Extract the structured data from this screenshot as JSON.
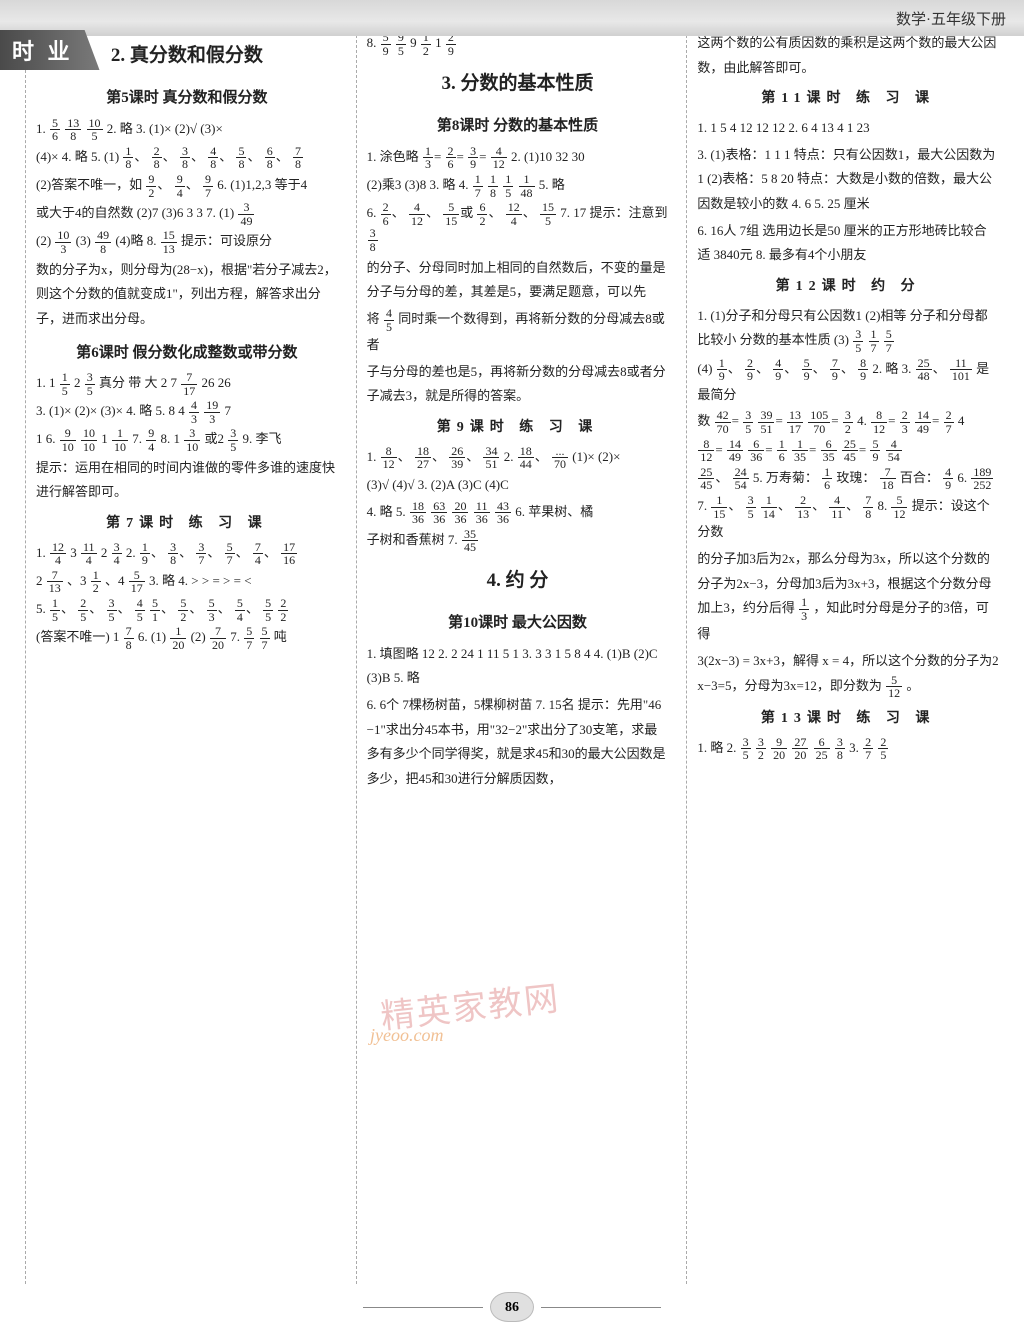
{
  "header": {
    "label": "数学·五年级下册"
  },
  "sideTab": "时    业",
  "pageNumber": "86",
  "watermark": {
    "line1": "精英家教网",
    "line2": "jyeoo.com"
  },
  "col1": {
    "s1_title": "2. 真分数和假分数",
    "s1_sub1": "第5课时  真分数和假分数",
    "s1_l1a": "1. ",
    "s1_f1n": "5",
    "s1_f1d": "6",
    "s1_l1b": "  ",
    "s1_f2n": "13",
    "s1_f2d": "8",
    "s1_l1c": "  ",
    "s1_f3n": "10",
    "s1_f3d": "5",
    "s1_l1d": "  2. 略  3. (1)×  (2)√  (3)×",
    "s1_l2a": "(4)×  4. 略  5. (1)",
    "s1_f4n": "1",
    "s1_f4d": "8",
    "s1_l2b": "、",
    "s1_f5n": "2",
    "s1_f5d": "8",
    "s1_l2c": "、",
    "s1_f6n": "3",
    "s1_f6d": "8",
    "s1_l2d": "、",
    "s1_f7n": "4",
    "s1_f7d": "8",
    "s1_l2e": "、",
    "s1_f8n": "5",
    "s1_f8d": "8",
    "s1_l2f": "、",
    "s1_f9n": "6",
    "s1_f9d": "8",
    "s1_l2g": "、",
    "s1_f10n": "7",
    "s1_f10d": "8",
    "s1_l3a": "(2)答案不唯一，如",
    "s1_f11n": "9",
    "s1_f11d": "2",
    "s1_l3b": "、",
    "s1_f12n": "9",
    "s1_f12d": "4",
    "s1_l3c": "、",
    "s1_f13n": "9",
    "s1_f13d": "7",
    "s1_l3d": "  6. (1)1,2,3  等于4",
    "s1_l4a": "或大于4的自然数  (2)7  (3)6  3  3  7. (1)",
    "s1_f14n": "3",
    "s1_f14d": "49",
    "s1_l5a": "(2)",
    "s1_f15n": "10",
    "s1_f15d": "3",
    "s1_l5b": "  (3)",
    "s1_f16n": "49",
    "s1_f16d": "8",
    "s1_l5c": "  (4)略  8. ",
    "s1_f17n": "15",
    "s1_f17d": "13",
    "s1_l5d": "  提示：可设原分",
    "s1_l6": "数的分子为x，则分母为(28−x)，根据\"若分子减去2，则这个分数的值就变成1\"，列出方程，解答求出分子，进而求出分母。",
    "s2_sub1": "第6课时  假分数化成整数或带分数",
    "s2_l1a": "1. 1",
    "s2_f1n": "1",
    "s2_f1d": "5",
    "s2_l1b": "  2",
    "s2_f2n": "3",
    "s2_f2d": "5",
    "s2_l1c": "  真分  带  大  2  7  ",
    "s2_f3n": "7",
    "s2_f3d": "17",
    "s2_l1d": "  26  26",
    "s2_l2a": "3. (1)× (2)× (3)×  4. 略  5. 8  4",
    "s2_f4n": "4",
    "s2_f4d": "3",
    "s2_l2b": "  ",
    "s2_f5n": "19",
    "s2_f5d": "3",
    "s2_l2c": "  7",
    "s2_l3a": "1  6. ",
    "s2_f6n": "9",
    "s2_f6d": "10",
    "s2_l3b": "  ",
    "s2_f7n": "10",
    "s2_f7d": "10",
    "s2_l3c": "  1",
    "s2_f8n": "1",
    "s2_f8d": "10",
    "s2_l3d": "  7. ",
    "s2_f9n": "9",
    "s2_f9d": "4",
    "s2_l3e": "  8. 1",
    "s2_f10n": "3",
    "s2_f10d": "10",
    "s2_l3f": "或2",
    "s2_f11n": "3",
    "s2_f11d": "5",
    "s2_l3g": "  9. 李飞",
    "s2_l4": "提示：运用在相同的时间内谁做的零件多谁的速度快进行解答即可。",
    "s3_sub1": "第7课时  练  习  课",
    "s3_l1a": "1. ",
    "s3_f1n": "12",
    "s3_f1d": "4",
    "s3_l1b": "  3  ",
    "s3_f2n": "11",
    "s3_f2d": "4",
    "s3_l1c": "  2",
    "s3_f3n": "3",
    "s3_f3d": "4",
    "s3_l1d": "  2. ",
    "s3_f4n": "1",
    "s3_f4d": "9",
    "s3_l1e": "、",
    "s3_f5n": "3",
    "s3_f5d": "8",
    "s3_l1f": "、",
    "s3_f6n": "3",
    "s3_f6d": "7",
    "s3_l1g": "、",
    "s3_f7n": "5",
    "s3_f7d": "7",
    "s3_l1h": "、",
    "s3_f8n": "7",
    "s3_f8d": "4",
    "s3_l1i": "、",
    "s3_f9n": "17",
    "s3_f9d": "16",
    "s3_l2a": "2",
    "s3_f10n": "7",
    "s3_f10d": "13",
    "s3_l2b": "、3",
    "s3_f11n": "1",
    "s3_f11d": "2",
    "s3_l2c": "、4",
    "s3_f12n": "5",
    "s3_f12d": "17",
    "s3_l2d": "  3. 略  4. >  >  =  >  =  <",
    "s3_l3a": "5. ",
    "s3_f13n": "1",
    "s3_f13d": "5",
    "s3_l3b": "、",
    "s3_f14n": "2",
    "s3_f14d": "5",
    "s3_l3c": "、",
    "s3_f15n": "3",
    "s3_f15d": "5",
    "s3_l3d": "、",
    "s3_f16n": "4",
    "s3_f16d": "5",
    "s3_l3e": "   ",
    "s3_f17n": "5",
    "s3_f17d": "1",
    "s3_l3f": "、",
    "s3_f18n": "5",
    "s3_f18d": "2",
    "s3_l3g": "、",
    "s3_f19n": "5",
    "s3_f19d": "3",
    "s3_l3h": "、",
    "s3_f20n": "5",
    "s3_f20d": "4",
    "s3_l3i": "、",
    "s3_f21n": "5",
    "s3_f21d": "5",
    "s3_l3j": "   ",
    "s3_f22n": "2",
    "s3_f22d": "2",
    "s3_l4a": "(答案不唯一)  1",
    "s3_f23n": "7",
    "s3_f23d": "8",
    "s3_l4b": "  6. (1)",
    "s3_f24n": "1",
    "s3_f24d": "20",
    "s3_l4c": "  (2)",
    "s3_f25n": "7",
    "s3_f25d": "20",
    "s3_l4d": "  7. ",
    "s3_f26n": "5",
    "s3_f26d": "7",
    "s3_l4e": "  ",
    "s3_f27n": "5",
    "s3_f27d": "7",
    "s3_l4f": "吨"
  },
  "col2": {
    "s0_l1a": "8. ",
    "s0_f1n": "5",
    "s0_f1d": "9",
    "s0_l1b": "  ",
    "s0_f2n": "9",
    "s0_f2d": "5",
    "s0_l1c": "   9",
    "s0_f3n": "1",
    "s0_f3d": "2",
    "s0_l1d": "  1",
    "s0_f4n": "2",
    "s0_f4d": "9",
    "s0_title": "3. 分数的基本性质",
    "s0_sub1": "第8课时  分数的基本性质",
    "s1_l1a": "1. 涂色略  ",
    "s1_f5n": "1",
    "s1_f5d": "3",
    "s1_l1b": "=",
    "s1_f6n": "2",
    "s1_f6d": "6",
    "s1_l1c": "=",
    "s1_f7n": "3",
    "s1_f7d": "9",
    "s1_l1d": "=",
    "s1_f8n": "4",
    "s1_f8d": "12",
    "s1_l1e": "  2. (1)10  32  30",
    "s1_l2a": "(2)乘3  (3)8  3. 略  4. ",
    "s1_f9n": "1",
    "s1_f9d": "7",
    "s1_l2b": "  ",
    "s1_f10n": "1",
    "s1_f10d": "8",
    "s1_l2c": "  ",
    "s1_f11n": "1",
    "s1_f11d": "5",
    "s1_l2d": "  ",
    "s1_f12n": "1",
    "s1_f12d": "48",
    "s1_l2e": "  5. 略",
    "s1_l3a": "6. ",
    "s1_f13n": "2",
    "s1_f13d": "6",
    "s1_l3b": "、",
    "s1_f14n": "4",
    "s1_f14d": "12",
    "s1_l3c": "、",
    "s1_f15n": "5",
    "s1_f15d": "15",
    "s1_l3d": "或",
    "s1_f16n": "6",
    "s1_f16d": "2",
    "s1_l3e": "、",
    "s1_f17n": "12",
    "s1_f17d": "4",
    "s1_l3f": "、",
    "s1_f18n": "15",
    "s1_f18d": "5",
    "s1_l3g": "  7. 17  提示：注意到",
    "s1_f19n": "3",
    "s1_f19d": "8",
    "s1_l4": "的分子、分母同时加上相同的自然数后，不变的量是分子与分母的差，其差是5，要满足题意，可以先",
    "s1_l5a": "将",
    "s1_f20n": "4",
    "s1_f20d": "5",
    "s1_l5b": "同时乘一个数得到，再将新分数的分母减去8或者",
    "s1_l6": "子与分母的差也是5，再将新分数的分母减去8或者分子减去3，就是所得的答案。",
    "s2_sub1": "第9课时  练  习  课",
    "s2_l1a": "1. ",
    "s2_f21n": "8",
    "s2_f21d": "12",
    "s2_l1b": "、",
    "s2_f22n": "18",
    "s2_f22d": "27",
    "s2_l1c": "、",
    "s2_f23n": "26",
    "s2_f23d": "39",
    "s2_l1d": "、",
    "s2_f24n": "34",
    "s2_f24d": "51",
    "s2_l1e": "  2. ",
    "s2_f25n": "18",
    "s2_f25d": "44",
    "s2_l1f": "、",
    "s2_f26n": "...",
    "s2_f26d": "70",
    "s2_l1g": "  (1)× (2)×",
    "s2_l2": "(3)√ (4)√  3. (2)A  (3)C  (4)C",
    "s2_l3a": "4. 略  5. ",
    "s2_f27n": "18",
    "s2_f27d": "36",
    "s2_l3b": "  ",
    "s2_f28n": "63",
    "s2_f28d": "36",
    "s2_l3c": "  ",
    "s2_f29n": "20",
    "s2_f29d": "36",
    "s2_l3d": "  ",
    "s2_f30n": "11",
    "s2_f30d": "36",
    "s2_l3e": "  ",
    "s2_f31n": "43",
    "s2_f31d": "36",
    "s2_l3f": "  6. 苹果树、橘",
    "s2_l4a": "子树和香蕉树  7. ",
    "s2_f32n": "35",
    "s2_f32d": "45",
    "s3_title": "4. 约    分",
    "s3_sub1": "第10课时  最大公因数",
    "s3_l1": "1. 填图略  12  2. 2  24  1  11  5  1  3. 3  3  1  5  8  4  4. (1)B  (2)C  (3)B  5. 略",
    "s3_l2": "6. 6个  7棵杨树苗，5棵柳树苗  7. 15名  提示：先用\"46−1\"求出分45本书，用\"32−2\"求出分了30支笔，求最多有多少个同学得奖，就是求45和30的最大公因数是多少，把45和30进行分解质因数，"
  },
  "col3": {
    "s0_l1": "这两个数的公有质因数的乘积是这两个数的最大公因数，由此解答即可。",
    "s1_sub1": "第11课时  练  习  课",
    "s1_l1": "1. 1  5  4  12  12  12  2. 6  4  13  4  1  23",
    "s1_l2": "3. (1)表格：1  1  1  特点：只有公因数1，最大公因数为1  (2)表格：5  8  20  特点：大数是小数的倍数，最大公因数是较小的数  4. 6  5. 25 厘米",
    "s1_l3": "6. 16人  7组  选用边长是50 厘米的正方形地砖比较合适  3840元  8. 最多有4个小朋友",
    "s2_sub1": "第12课时  约    分",
    "s2_l1a": "1. (1)分子和分母只有公因数1  (2)相等  分子和分母都比较小  分数的基本性质  (3)",
    "s2_f1n": "3",
    "s2_f1d": "5",
    "s2_l1b": "  ",
    "s2_f2n": "1",
    "s2_f2d": "7",
    "s2_l1c": "  ",
    "s2_f3n": "5",
    "s2_f3d": "7",
    "s2_l2a": "(4)",
    "s2_f4n": "1",
    "s2_f4d": "9",
    "s2_l2b": "、",
    "s2_f5n": "2",
    "s2_f5d": "9",
    "s2_l2c": "、",
    "s2_f6n": "4",
    "s2_f6d": "9",
    "s2_l2d": "、",
    "s2_f7n": "5",
    "s2_f7d": "9",
    "s2_l2e": "、",
    "s2_f8n": "7",
    "s2_f8d": "9",
    "s2_l2f": "、",
    "s2_f9n": "8",
    "s2_f9d": "9",
    "s2_l2g": "  2. 略  3. ",
    "s2_f10n": "25",
    "s2_f10d": "48",
    "s2_l2h": "、",
    "s2_f11n": "11",
    "s2_f11d": "101",
    "s2_l2i": "是最简分",
    "s2_l3a": "数  ",
    "s2_f12n": "42",
    "s2_f12d": "70",
    "s2_l3b": "=",
    "s2_f13n": "3",
    "s2_f13d": "5",
    "s2_l3c": "  ",
    "s2_f14n": "39",
    "s2_f14d": "51",
    "s2_l3d": "=",
    "s2_f15n": "13",
    "s2_f15d": "17",
    "s2_l3e": "  ",
    "s2_f16n": "105",
    "s2_f16d": "70",
    "s2_l3f": "=",
    "s2_f17n": "3",
    "s2_f17d": "2",
    "s2_l3g": "  4. ",
    "s2_f18n": "8",
    "s2_f18d": "12",
    "s2_l3h": "=",
    "s2_f19n": "2",
    "s2_f19d": "3",
    "s2_l3i": "  ",
    "s2_f20n": "14",
    "s2_f20d": "49",
    "s2_l3j": "=",
    "s2_f21n": "2",
    "s2_f21d": "7",
    "s2_l3k": "  4",
    "s2_l4a": "",
    "s2_f22n": "8",
    "s2_f22d": "12",
    "s2_l4b": "=",
    "s2_f23n": "14",
    "s2_f23d": "49",
    "s2_l4c": "  ",
    "s2_f24n": "6",
    "s2_f24d": "36",
    "s2_l4d": "=",
    "s2_f25n": "1",
    "s2_f25d": "6",
    "s2_l4e": "  ",
    "s2_f25an": "1",
    "s2_f25ad": "35",
    "s2_l4ea": "=",
    "s2_f26n": "6",
    "s2_f26d": "35",
    "s2_l4f": "  ",
    "s2_f27n": "25",
    "s2_f27d": "45",
    "s2_l4g": "=",
    "s2_f28n": "5",
    "s2_f28d": "9",
    "s2_l4h": "  ",
    "s2_f29n": "4",
    "s2_f29d": "54",
    "s2_l5a": "",
    "s2_f30n": "25",
    "s2_f30d": "45",
    "s2_l5b": "、",
    "s2_f31n": "24",
    "s2_f31d": "54",
    "s2_l5c": "  5. 万寿菊：",
    "s2_f32n": "1",
    "s2_f32d": "6",
    "s2_l5d": "  玫瑰：",
    "s2_f33n": "7",
    "s2_f33d": "18",
    "s2_l5e": "  百合：",
    "s2_f34n": "4",
    "s2_f34d": "9",
    "s2_l5f": "  6. ",
    "s2_f35n": "189",
    "s2_f35d": "252",
    "s2_l6a": "7. ",
    "s2_f36n": "1",
    "s2_f36d": "15",
    "s2_l6b": "、",
    "s2_f37n": "3",
    "s2_f37d": "5",
    "s2_l6c": "  ",
    "s2_f38n": "1",
    "s2_f38d": "14",
    "s2_l6d": "、",
    "s2_f39n": "2",
    "s2_f39d": "13",
    "s2_l6e": "、",
    "s2_f40n": "4",
    "s2_f40d": "11",
    "s2_l6f": "、",
    "s2_f41n": "7",
    "s2_f41d": "8",
    "s2_l6g": "  8. ",
    "s2_f42n": "5",
    "s2_f42d": "12",
    "s2_l6h": "  提示：设这个分数",
    "s2_l7a": "的分子加3后为2x，那么分母为3x，所以这个分数的分子为2x−3，分母加3后为3x+3，根据这个分数分母加上3，约分后得",
    "s2_f43n": "1",
    "s2_f43d": "3",
    "s2_l7b": "，知此时分母是分子的3倍，可得",
    "s2_l8": "3(2x−3) = 3x+3，解得 x = 4，所以这个分数的分子为2x−3=5，分母为3x=12，即分数为",
    "s2_f44n": "5",
    "s2_f44d": "12",
    "s2_l8b": "。",
    "s3_sub1": "第13课时  练  习  课",
    "s3_l1a": "1. 略  2. ",
    "s3_f45n": "3",
    "s3_f45d": "5",
    "s3_l1b": "  ",
    "s3_f46n": "3",
    "s3_f46d": "2",
    "s3_l1c": "  ",
    "s3_f47n": "9",
    "s3_f47d": "20",
    "s3_l1d": "  ",
    "s3_f48n": "27",
    "s3_f48d": "20",
    "s3_l1e": "  ",
    "s3_f49n": "6",
    "s3_f49d": "25",
    "s3_l1f": "  ",
    "s3_f50n": "3",
    "s3_f50d": "8",
    "s3_l1g": "  3. ",
    "s3_f51n": "2",
    "s3_f51d": "7",
    "s3_l1h": "  ",
    "s3_f52n": "2",
    "s3_f52d": "5"
  }
}
